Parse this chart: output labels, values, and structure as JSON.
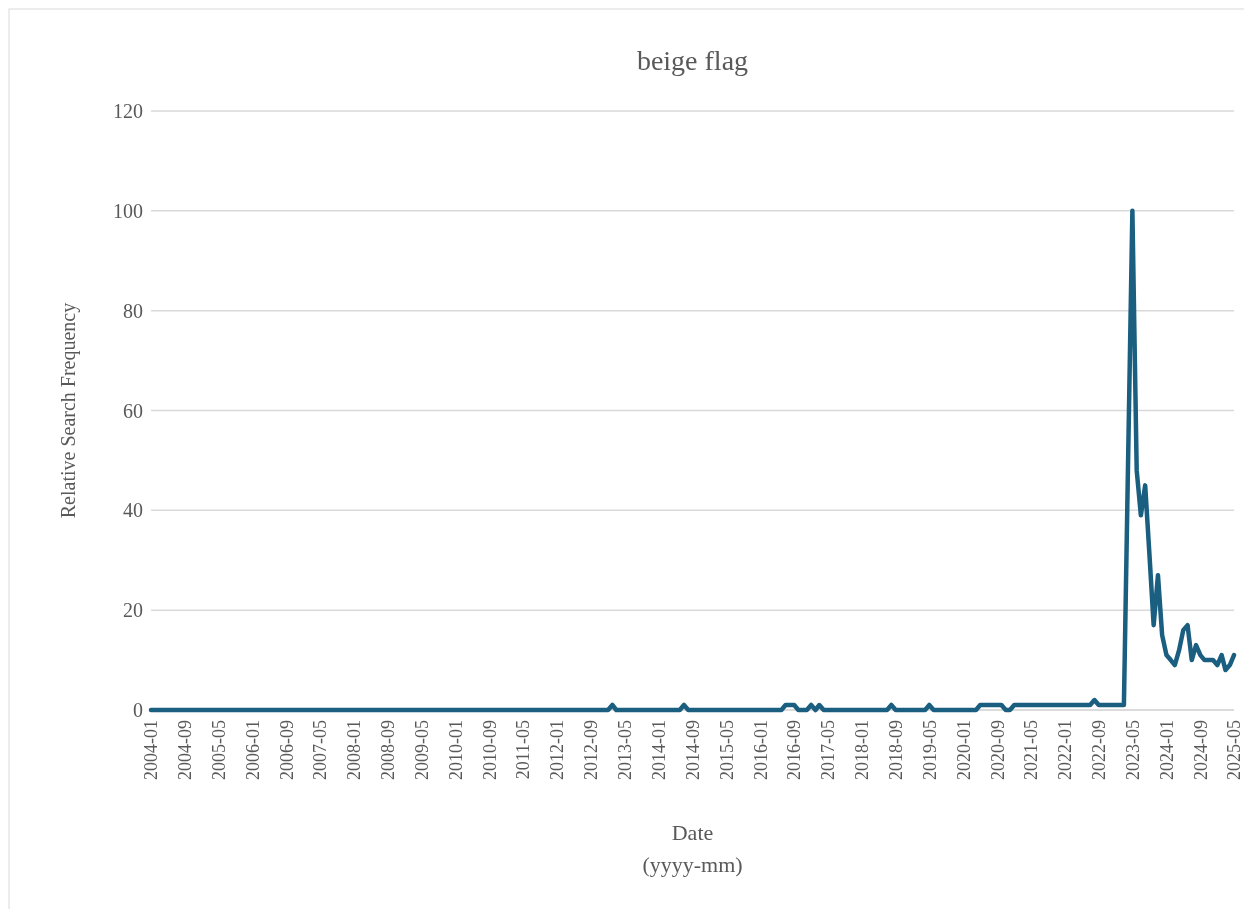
{
  "chart_data": {
    "type": "line",
    "title": "beige flag",
    "xlabel": "Date\n(yyyy-mm)",
    "ylabel": "Relative Search Frequency",
    "x": [
      "2004-01",
      "2013-01",
      "2013-02",
      "2013-03",
      "2014-06",
      "2014-07",
      "2014-08",
      "2016-06",
      "2016-07",
      "2016-09",
      "2016-10",
      "2016-12",
      "2017-01",
      "2017-02",
      "2017-03",
      "2017-04",
      "2018-07",
      "2018-08",
      "2018-09",
      "2019-04",
      "2019-05",
      "2019-06",
      "2020-04",
      "2020-05",
      "2020-10",
      "2020-11",
      "2020-12",
      "2021-01",
      "2022-07",
      "2022-08",
      "2022-09",
      "2023-03",
      "2023-05",
      "2023-06",
      "2023-07",
      "2023-08",
      "2023-09",
      "2023-10",
      "2023-11",
      "2023-12",
      "2024-01",
      "2024-02",
      "2024-03",
      "2024-04",
      "2024-05",
      "2024-06",
      "2024-07",
      "2024-08",
      "2024-09",
      "2024-10",
      "2024-11",
      "2024-12",
      "2025-01",
      "2025-02",
      "2025-03",
      "2025-04",
      "2025-05"
    ],
    "series": [
      {
        "color": "#1a5e80",
        "values": [
          0,
          0,
          1,
          0,
          0,
          1,
          0,
          0,
          1,
          1,
          0,
          0,
          1,
          0,
          1,
          0,
          0,
          1,
          0,
          0,
          1,
          0,
          0,
          1,
          1,
          0,
          0,
          1,
          1,
          2,
          1,
          1,
          100,
          48,
          39,
          45,
          31,
          17,
          27,
          15,
          11,
          10,
          9,
          12,
          16,
          17,
          10,
          13,
          11,
          10,
          10,
          10,
          9,
          11,
          8,
          9,
          11
        ]
      }
    ],
    "xlim": [
      "2004-01",
      "2025-05"
    ],
    "xticks": [
      "2004-01",
      "2004-09",
      "2005-05",
      "2006-01",
      "2006-09",
      "2007-05",
      "2008-01",
      "2008-09",
      "2009-05",
      "2010-01",
      "2010-09",
      "2011-05",
      "2012-01",
      "2012-09",
      "2013-05",
      "2014-01",
      "2014-09",
      "2015-05",
      "2016-01",
      "2016-09",
      "2017-05",
      "2018-01",
      "2018-09",
      "2019-05",
      "2020-01",
      "2020-09",
      "2021-05",
      "2022-01",
      "2022-09",
      "2023-05",
      "2024-01",
      "2024-09",
      "2025-05"
    ],
    "ylim": [
      0,
      120
    ],
    "yticks": [
      0,
      20,
      40,
      60,
      80,
      100,
      120
    ],
    "grid": "y",
    "marker": "none",
    "line_style": "solid"
  }
}
